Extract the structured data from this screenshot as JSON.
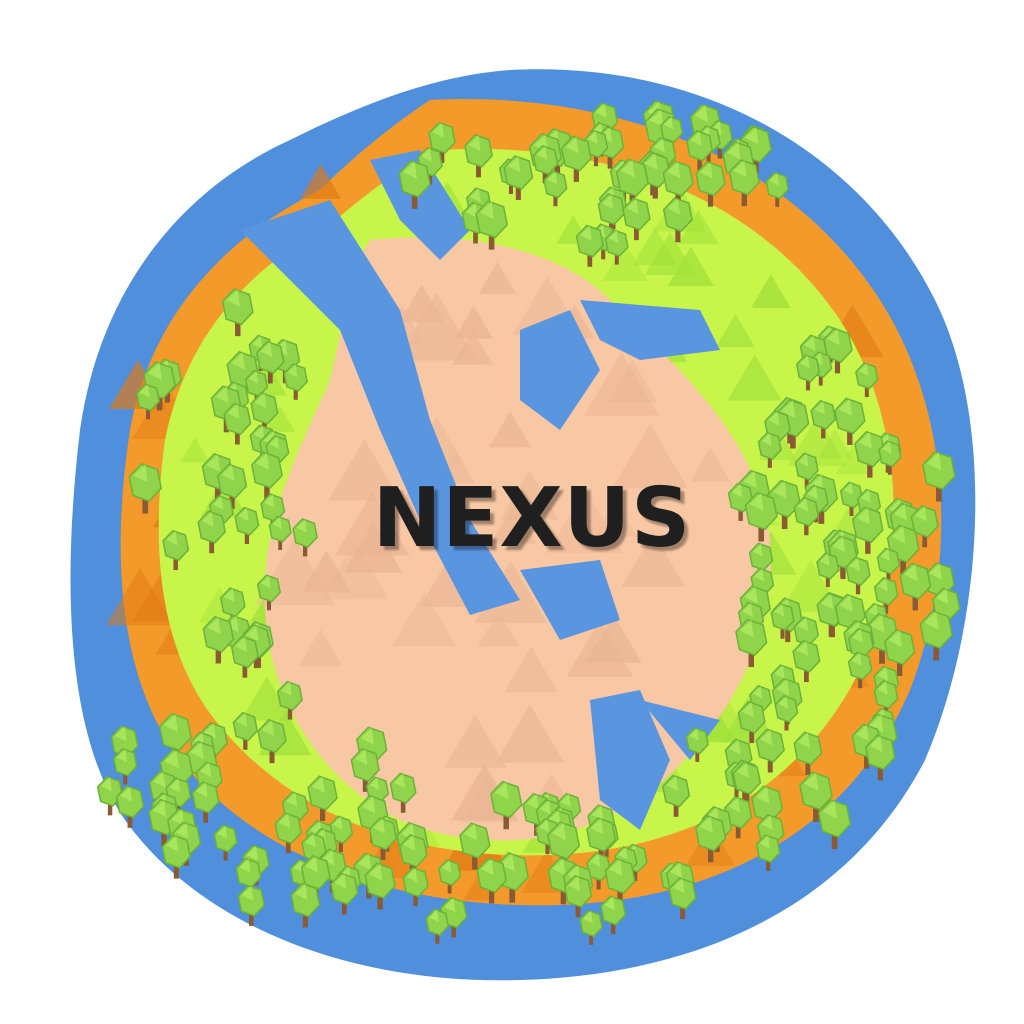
{
  "logo": {
    "title": "NEXUS"
  },
  "colors": {
    "background": "#ffffff",
    "ocean": "#4f8fdc",
    "ocean_edge": "#3f7dcc",
    "river": "#5a95e0",
    "sand": "#f8c7a4",
    "sand_shade": "#e9b493",
    "grass": "#c8f54a",
    "grass_dark": "#9ee03a",
    "autumn": "#f39a2a",
    "autumn_dark": "#e07a14",
    "tree_leaf": "#8fd44a",
    "tree_leaf_shade": "#6cb23a",
    "trunk": "#8a5a34",
    "title": "#1f1f1f"
  },
  "icons": [
    "planet-icon",
    "tree-icon"
  ]
}
